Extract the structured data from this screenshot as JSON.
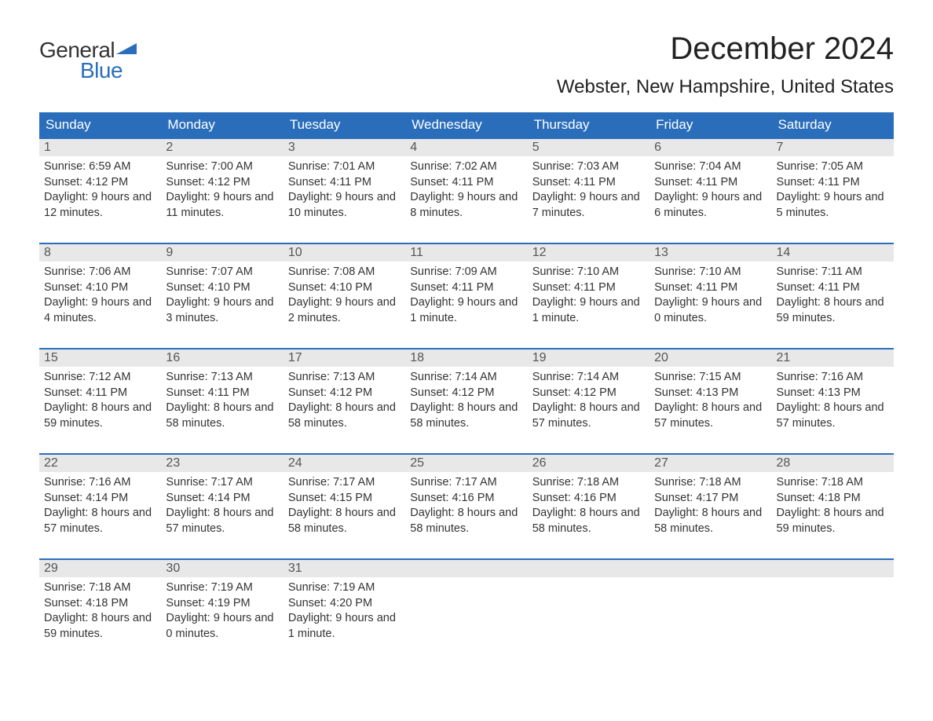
{
  "logo": {
    "text_general": "General",
    "text_blue": "Blue",
    "flag_color": "#2a6ebb"
  },
  "title": "December 2024",
  "location": "Webster, New Hampshire, United States",
  "colors": {
    "header_bg": "#2a6ebb",
    "header_text": "#ffffff",
    "week_border": "#2a6ebb",
    "daynum_bg": "#e8e8e8",
    "body_text": "#333333",
    "page_bg": "#ffffff"
  },
  "typography": {
    "title_fontsize": 40,
    "location_fontsize": 24,
    "header_fontsize": 17,
    "daynum_fontsize": 16,
    "body_fontsize": 14.5,
    "font_family": "Arial"
  },
  "day_names": [
    "Sunday",
    "Monday",
    "Tuesday",
    "Wednesday",
    "Thursday",
    "Friday",
    "Saturday"
  ],
  "weeks": [
    [
      {
        "n": "1",
        "sr": "6:59 AM",
        "ss": "4:12 PM",
        "dl": "9 hours and 12 minutes."
      },
      {
        "n": "2",
        "sr": "7:00 AM",
        "ss": "4:12 PM",
        "dl": "9 hours and 11 minutes."
      },
      {
        "n": "3",
        "sr": "7:01 AM",
        "ss": "4:11 PM",
        "dl": "9 hours and 10 minutes."
      },
      {
        "n": "4",
        "sr": "7:02 AM",
        "ss": "4:11 PM",
        "dl": "9 hours and 8 minutes."
      },
      {
        "n": "5",
        "sr": "7:03 AM",
        "ss": "4:11 PM",
        "dl": "9 hours and 7 minutes."
      },
      {
        "n": "6",
        "sr": "7:04 AM",
        "ss": "4:11 PM",
        "dl": "9 hours and 6 minutes."
      },
      {
        "n": "7",
        "sr": "7:05 AM",
        "ss": "4:11 PM",
        "dl": "9 hours and 5 minutes."
      }
    ],
    [
      {
        "n": "8",
        "sr": "7:06 AM",
        "ss": "4:10 PM",
        "dl": "9 hours and 4 minutes."
      },
      {
        "n": "9",
        "sr": "7:07 AM",
        "ss": "4:10 PM",
        "dl": "9 hours and 3 minutes."
      },
      {
        "n": "10",
        "sr": "7:08 AM",
        "ss": "4:10 PM",
        "dl": "9 hours and 2 minutes."
      },
      {
        "n": "11",
        "sr": "7:09 AM",
        "ss": "4:11 PM",
        "dl": "9 hours and 1 minute."
      },
      {
        "n": "12",
        "sr": "7:10 AM",
        "ss": "4:11 PM",
        "dl": "9 hours and 1 minute."
      },
      {
        "n": "13",
        "sr": "7:10 AM",
        "ss": "4:11 PM",
        "dl": "9 hours and 0 minutes."
      },
      {
        "n": "14",
        "sr": "7:11 AM",
        "ss": "4:11 PM",
        "dl": "8 hours and 59 minutes."
      }
    ],
    [
      {
        "n": "15",
        "sr": "7:12 AM",
        "ss": "4:11 PM",
        "dl": "8 hours and 59 minutes."
      },
      {
        "n": "16",
        "sr": "7:13 AM",
        "ss": "4:11 PM",
        "dl": "8 hours and 58 minutes."
      },
      {
        "n": "17",
        "sr": "7:13 AM",
        "ss": "4:12 PM",
        "dl": "8 hours and 58 minutes."
      },
      {
        "n": "18",
        "sr": "7:14 AM",
        "ss": "4:12 PM",
        "dl": "8 hours and 58 minutes."
      },
      {
        "n": "19",
        "sr": "7:14 AM",
        "ss": "4:12 PM",
        "dl": "8 hours and 57 minutes."
      },
      {
        "n": "20",
        "sr": "7:15 AM",
        "ss": "4:13 PM",
        "dl": "8 hours and 57 minutes."
      },
      {
        "n": "21",
        "sr": "7:16 AM",
        "ss": "4:13 PM",
        "dl": "8 hours and 57 minutes."
      }
    ],
    [
      {
        "n": "22",
        "sr": "7:16 AM",
        "ss": "4:14 PM",
        "dl": "8 hours and 57 minutes."
      },
      {
        "n": "23",
        "sr": "7:17 AM",
        "ss": "4:14 PM",
        "dl": "8 hours and 57 minutes."
      },
      {
        "n": "24",
        "sr": "7:17 AM",
        "ss": "4:15 PM",
        "dl": "8 hours and 58 minutes."
      },
      {
        "n": "25",
        "sr": "7:17 AM",
        "ss": "4:16 PM",
        "dl": "8 hours and 58 minutes."
      },
      {
        "n": "26",
        "sr": "7:18 AM",
        "ss": "4:16 PM",
        "dl": "8 hours and 58 minutes."
      },
      {
        "n": "27",
        "sr": "7:18 AM",
        "ss": "4:17 PM",
        "dl": "8 hours and 58 minutes."
      },
      {
        "n": "28",
        "sr": "7:18 AM",
        "ss": "4:18 PM",
        "dl": "8 hours and 59 minutes."
      }
    ],
    [
      {
        "n": "29",
        "sr": "7:18 AM",
        "ss": "4:18 PM",
        "dl": "8 hours and 59 minutes."
      },
      {
        "n": "30",
        "sr": "7:19 AM",
        "ss": "4:19 PM",
        "dl": "9 hours and 0 minutes."
      },
      {
        "n": "31",
        "sr": "7:19 AM",
        "ss": "4:20 PM",
        "dl": "9 hours and 1 minute."
      },
      null,
      null,
      null,
      null
    ]
  ],
  "labels": {
    "sunrise": "Sunrise:",
    "sunset": "Sunset:",
    "daylight": "Daylight:"
  }
}
